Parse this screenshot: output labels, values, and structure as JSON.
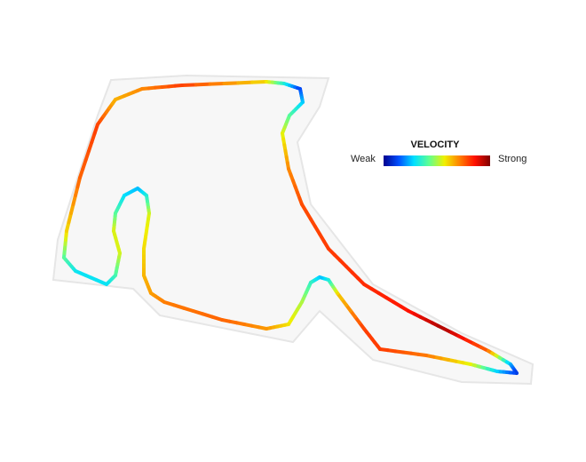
{
  "legend": {
    "title": "VELOCITY",
    "low_label": "Weak",
    "high_label": "Strong",
    "colors": [
      "#00008f",
      "#0050ff",
      "#00e0ff",
      "#60ff90",
      "#f0f000",
      "#ff8000",
      "#ff1000",
      "#800000"
    ]
  }
}
